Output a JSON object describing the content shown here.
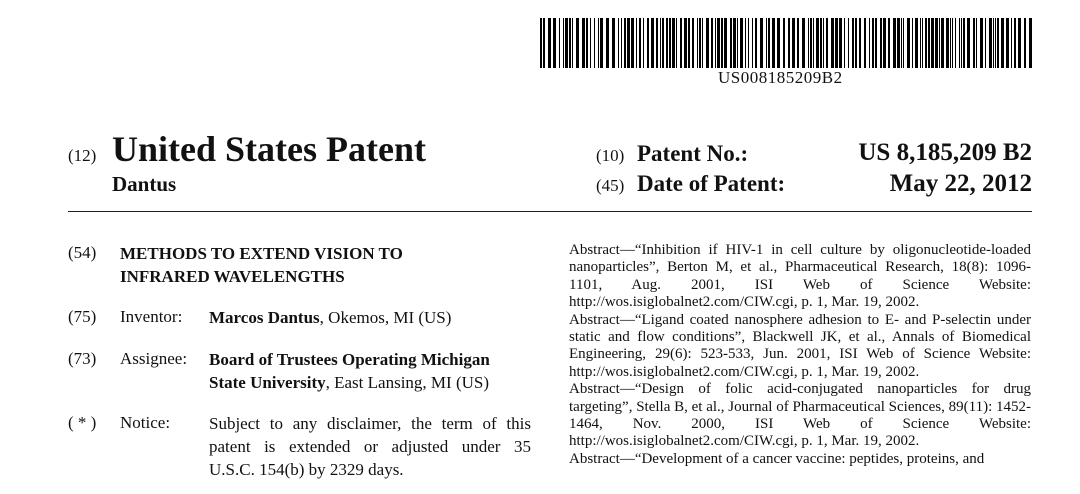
{
  "barcode": {
    "number": "US008185209B2"
  },
  "header": {
    "code_12": "(12)",
    "title": "United States Patent",
    "inventor_surname": "Dantus",
    "code_10": "(10)",
    "patent_no_label": "Patent No.:",
    "patent_no": "US 8,185,209 B2",
    "code_45": "(45)",
    "date_label": "Date of Patent:",
    "date": "May 22, 2012"
  },
  "fields": {
    "title": {
      "code": "(54)",
      "line1": "METHODS TO EXTEND VISION TO",
      "line2": "INFRARED WAVELENGTHS"
    },
    "inventor": {
      "code": "(75)",
      "label": "Inventor:",
      "name": "Marcos Dantus",
      "location": ", Okemos, MI (US)"
    },
    "assignee": {
      "code": "(73)",
      "label": "Assignee:",
      "name_line1": "Board of Trustees Operating Michigan",
      "name_line2": "State University",
      "location": ", East Lansing, MI (US)"
    },
    "notice": {
      "code": "( * )",
      "label": "Notice:",
      "line1": "Subject to any disclaimer, the term of this",
      "line2": "patent is extended or adjusted under 35",
      "line3": "U.S.C. 154(b) by 2329 days."
    }
  },
  "references": [
    "Abstract—“Inhibition if HIV-1 in cell culture by oligonucleotide-loaded nanoparticles”, Berton M, et al., Pharmaceutical Research, 18(8): 1096-1101, Aug. 2001, ISI Web of Science Website: http://wos.isiglobalnet2.com/CIW.cgi, p. 1, Mar. 19, 2002.",
    "Abstract—“Ligand coated nanosphere adhesion to E- and P-selectin under static and flow conditions”, Blackwell JK, et al., Annals of Biomedical Engineering, 29(6): 523-533, Jun. 2001, ISI Web of Science Website: http://wos.isiglobalnet2.com/CIW.cgi, p. 1, Mar. 19, 2002.",
    "Abstract—“Design of folic acid-conjugated nanoparticles for drug targeting”, Stella B, et al., Journal of Pharmaceutical Sciences, 89(11): 1452-1464, Nov. 2000, ISI Web of Science Website: http://wos.isiglobalnet2.com/CIW.cgi, p. 1, Mar. 19, 2002.",
    "Abstract—“Development of a cancer vaccine: peptides, proteins, and"
  ]
}
